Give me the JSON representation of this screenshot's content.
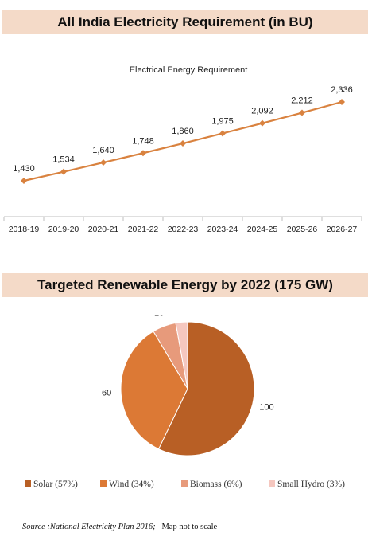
{
  "banners": {
    "top": "All India Electricity Requirement (in BU)",
    "bottom": "Targeted Renewable Energy by 2022 (175 GW)"
  },
  "chart_data": [
    {
      "type": "line",
      "title": "Electrical Energy  Requirement",
      "categories": [
        "2018-19",
        "2019-20",
        "2020-21",
        "2021-22",
        "2022-23",
        "2023-24",
        "2024-25",
        "2025-26",
        "2026-27"
      ],
      "series": [
        {
          "values": [
            1430,
            1534,
            1640,
            1748,
            1860,
            1975,
            2092,
            2212,
            2336
          ],
          "color": "#d9823f"
        }
      ],
      "data_labels": [
        "1,430",
        "1,534",
        "1,640",
        "1,748",
        "1,860",
        "1,975",
        "2,092",
        "2,212",
        "2,336"
      ],
      "marker": "diamond",
      "grid": false
    },
    {
      "type": "pie",
      "slices": [
        {
          "label": "Solar (57%)",
          "value": 100,
          "value_label": "100",
          "color": "#b85f25"
        },
        {
          "label": "Wind (34%)",
          "value": 60,
          "value_label": "60",
          "color": "#dc7935"
        },
        {
          "label": "Biomass (6%)",
          "value": 10,
          "value_label": "10",
          "color": "#e79a7b"
        },
        {
          "label": "Small Hydro (3%)",
          "value": 5,
          "value_label": "5",
          "color": "#f5c7bf"
        }
      ],
      "legend_position": "bottom"
    }
  ],
  "source": {
    "label": "Source :National Electricity Plan 2016;",
    "note": "Map not to scale"
  }
}
